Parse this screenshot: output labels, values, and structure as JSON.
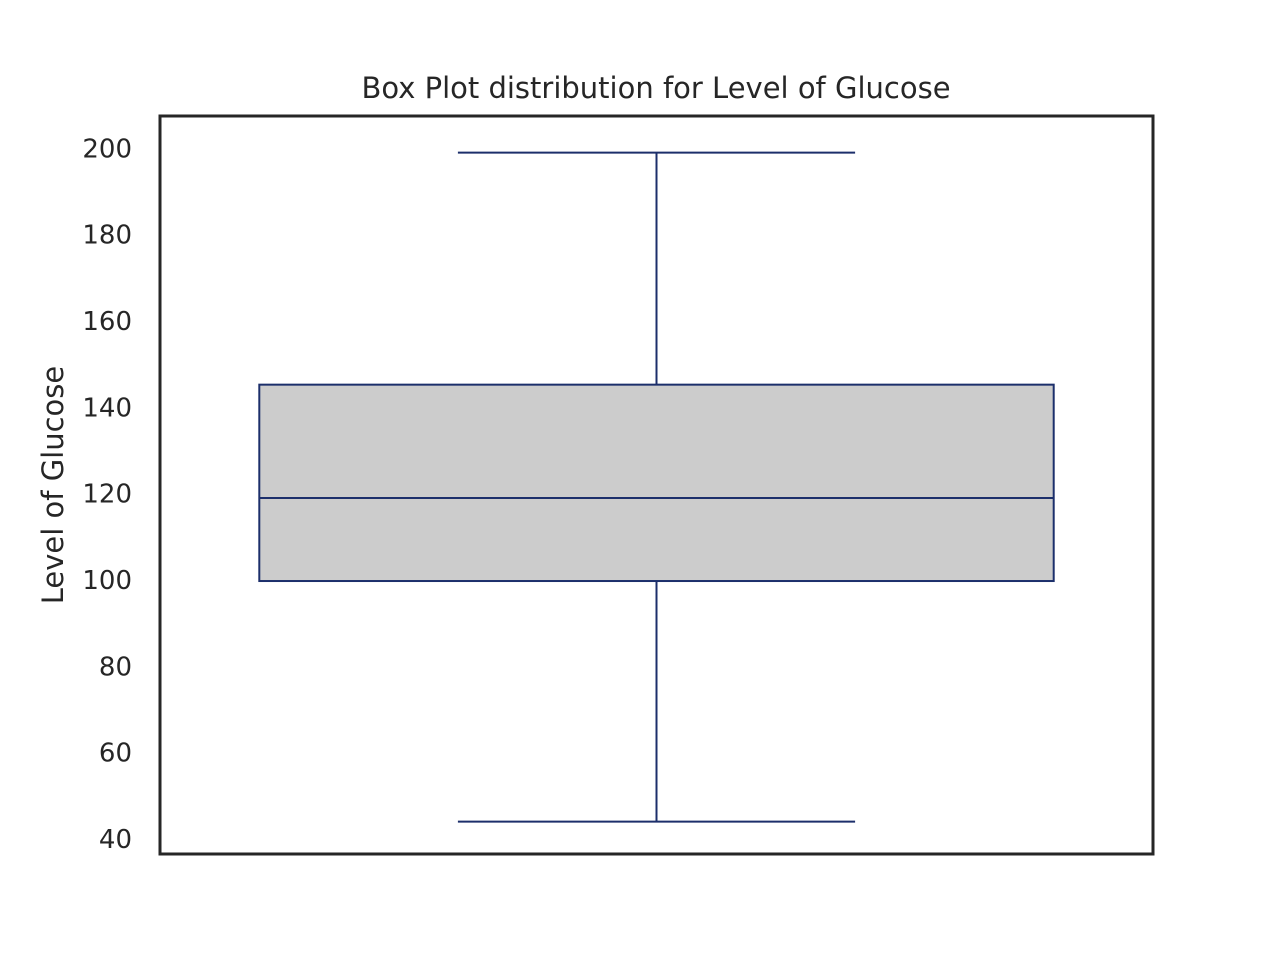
{
  "chart_data": {
    "type": "box",
    "title": "Box Plot distribution for Level of Glucose",
    "xlabel": "",
    "ylabel": "Level of Glucose",
    "ylim": [
      36.5,
      207.5
    ],
    "yticks": [
      40,
      60,
      80,
      100,
      120,
      140,
      160,
      180,
      200
    ],
    "grid": false,
    "legend": "none",
    "boxes": [
      {
        "whisker_low": 44,
        "q1": 99.75,
        "median": 119,
        "q3": 145.25,
        "whisker_high": 199
      }
    ],
    "colors": {
      "box_fill": "#cccccc",
      "box_edge": "#1c2f6b",
      "frame": "#262626",
      "text": "#262626"
    }
  }
}
